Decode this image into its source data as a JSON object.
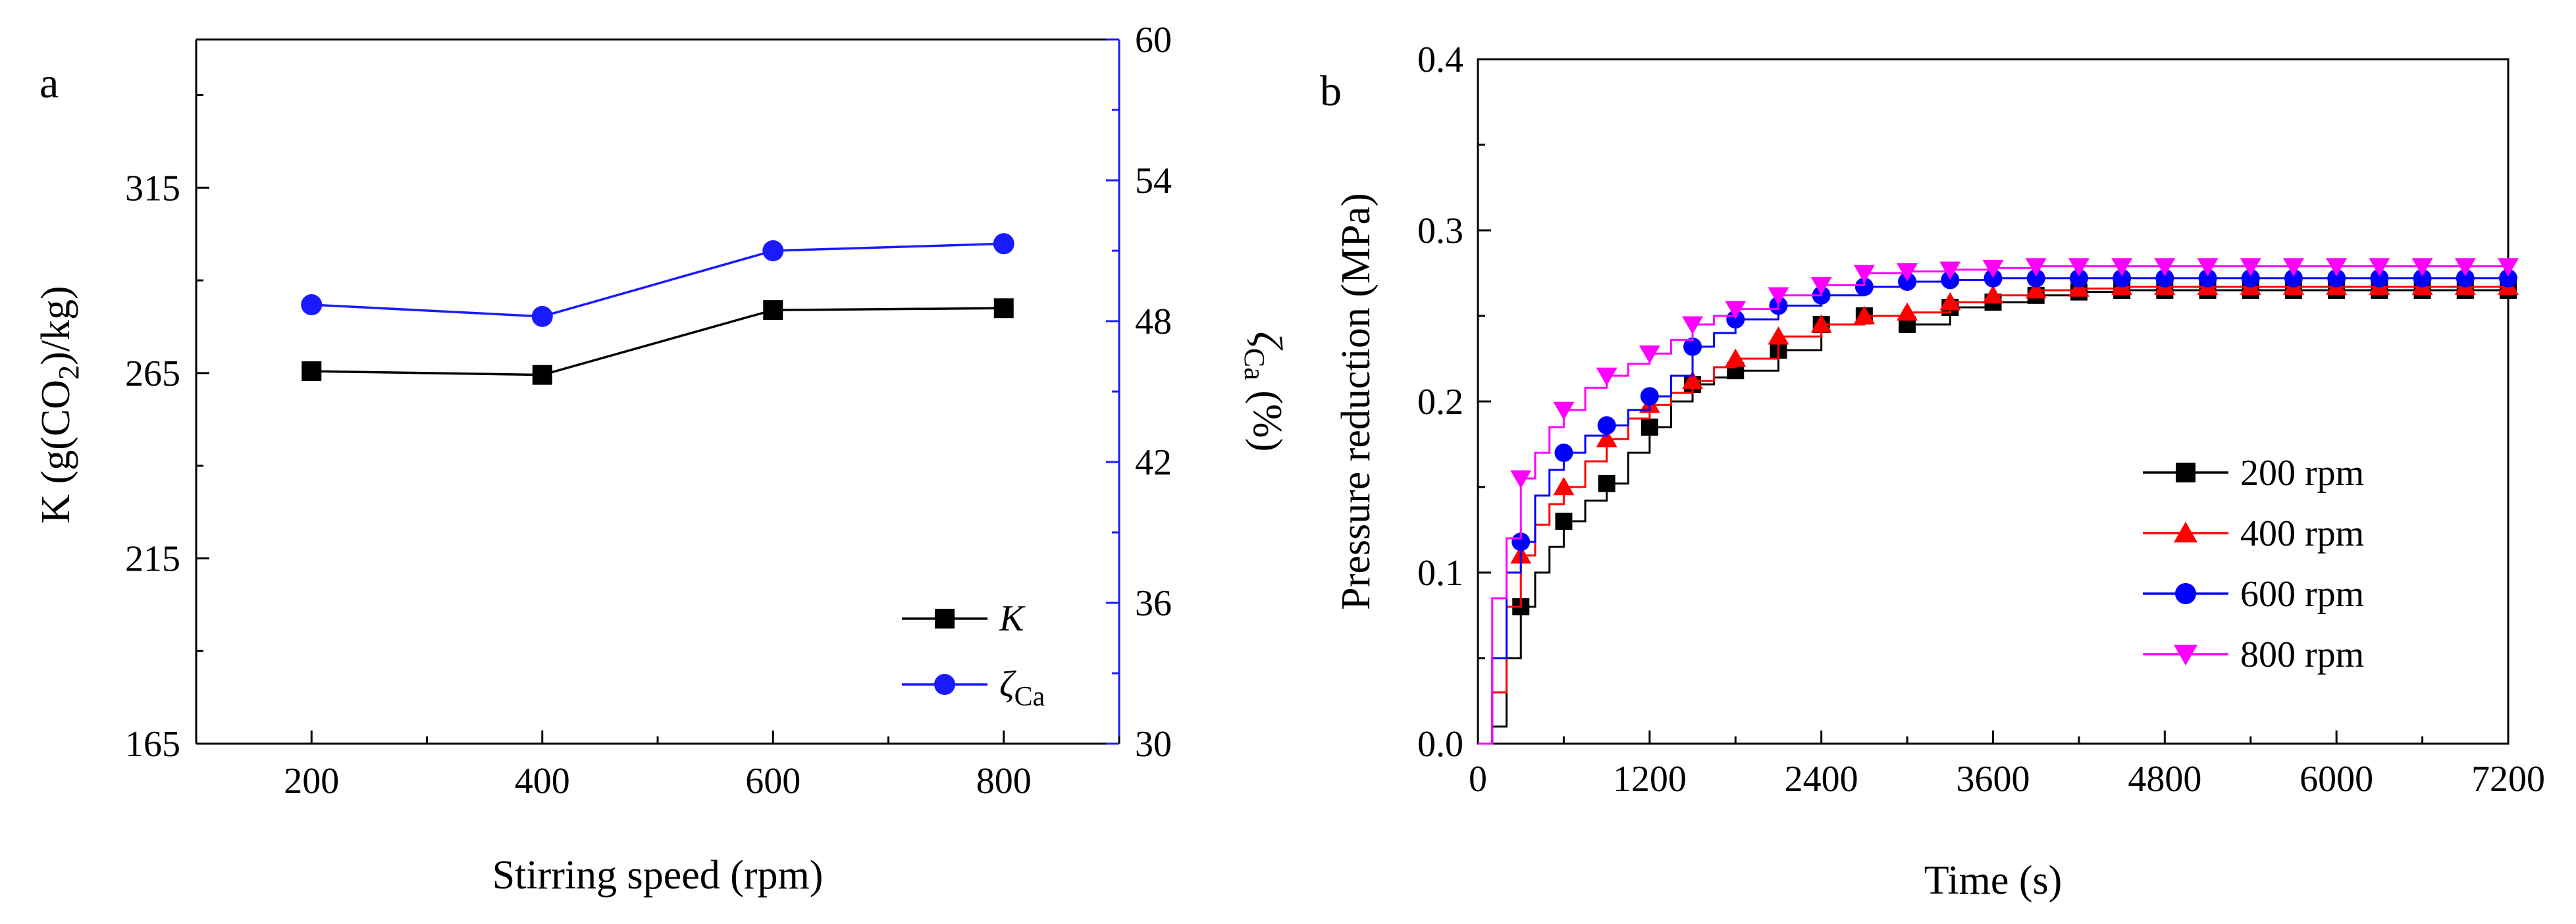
{
  "chart_data": [
    {
      "panel_label": "a",
      "type": "line",
      "xlabel": "Stirring speed (rpm)",
      "categories": [
        200,
        400,
        600,
        800
      ],
      "xticks": [
        "200",
        "400",
        "600",
        "800"
      ],
      "xlim": [
        100,
        900
      ],
      "ylabel_left": {
        "main": "K (g(CO",
        "sub": "2",
        "tail": ")/kg)"
      },
      "ylim_left": [
        165,
        355
      ],
      "yticks_left": [
        165,
        215,
        265,
        315
      ],
      "ylabel_right": {
        "symbol": "ζ",
        "sub": "Ca",
        "tail": " (%)"
      },
      "ylim_right": [
        30,
        60
      ],
      "yticks_right": [
        30,
        36,
        42,
        48,
        54,
        60
      ],
      "right_axis_color": "#1a1aff",
      "legend_position": "bottom-right",
      "series": [
        {
          "name": "K",
          "axis": "left",
          "color": "#000000",
          "marker": "square",
          "values": [
            265.5,
            264.5,
            282.0,
            282.5
          ]
        },
        {
          "name": "ζ",
          "name_sub": "Ca",
          "axis": "right",
          "color": "#1a1aff",
          "marker": "circle",
          "values": [
            48.7,
            48.2,
            51.0,
            51.3
          ]
        }
      ]
    },
    {
      "panel_label": "b",
      "type": "line",
      "xlabel": "Time (s)",
      "ylabel": "Pressure reduction (MPa)",
      "xlim": [
        0,
        7200
      ],
      "ylim": [
        0,
        0.4
      ],
      "xticks": [
        0,
        1200,
        2400,
        3600,
        4800,
        6000,
        7200
      ],
      "yticks": [
        "0.0",
        "0.1",
        "0.2",
        "0.3",
        "0.4"
      ],
      "legend_position": "center-right",
      "series": [
        {
          "name": "200 rpm",
          "color": "#000000",
          "marker": "square",
          "x": [
            0,
            100,
            200,
            300,
            400,
            500,
            600,
            750,
            900,
            1050,
            1200,
            1350,
            1500,
            1650,
            1800,
            2100,
            2400,
            2700,
            3000,
            3300,
            3600,
            3900,
            4200,
            4500,
            4800,
            5100,
            5400,
            5700,
            6000,
            6300,
            6600,
            6900,
            7200
          ],
          "y": [
            0.0,
            0.01,
            0.05,
            0.08,
            0.1,
            0.115,
            0.13,
            0.142,
            0.152,
            0.17,
            0.185,
            0.2,
            0.21,
            0.214,
            0.218,
            0.23,
            0.245,
            0.25,
            0.245,
            0.255,
            0.258,
            0.262,
            0.264,
            0.265,
            0.265,
            0.265,
            0.265,
            0.265,
            0.265,
            0.265,
            0.265,
            0.265,
            0.265
          ]
        },
        {
          "name": "400 rpm",
          "color": "#ff0000",
          "marker": "triangle-up",
          "x": [
            0,
            100,
            200,
            300,
            400,
            500,
            600,
            750,
            900,
            1050,
            1200,
            1350,
            1500,
            1650,
            1800,
            2100,
            2400,
            2700,
            3000,
            3300,
            3600,
            3900,
            4200,
            4500,
            4800,
            5100,
            5400,
            5700,
            6000,
            6300,
            6600,
            6900,
            7200
          ],
          "y": [
            0.0,
            0.03,
            0.08,
            0.11,
            0.128,
            0.14,
            0.15,
            0.165,
            0.178,
            0.19,
            0.198,
            0.205,
            0.212,
            0.22,
            0.225,
            0.238,
            0.245,
            0.25,
            0.252,
            0.258,
            0.262,
            0.265,
            0.266,
            0.267,
            0.267,
            0.267,
            0.267,
            0.267,
            0.267,
            0.267,
            0.267,
            0.267,
            0.267
          ]
        },
        {
          "name": "600 rpm",
          "color": "#0000ff",
          "marker": "circle",
          "x": [
            0,
            100,
            200,
            300,
            400,
            500,
            600,
            750,
            900,
            1050,
            1200,
            1350,
            1500,
            1650,
            1800,
            2100,
            2400,
            2700,
            3000,
            3300,
            3600,
            3900,
            4200,
            4500,
            4800,
            5100,
            5400,
            5700,
            6000,
            6300,
            6600,
            6900,
            7200
          ],
          "y": [
            0.0,
            0.05,
            0.1,
            0.118,
            0.145,
            0.16,
            0.17,
            0.18,
            0.186,
            0.195,
            0.203,
            0.215,
            0.232,
            0.24,
            0.248,
            0.256,
            0.262,
            0.267,
            0.27,
            0.271,
            0.272,
            0.272,
            0.272,
            0.272,
            0.272,
            0.272,
            0.272,
            0.272,
            0.272,
            0.272,
            0.272,
            0.272,
            0.272
          ]
        },
        {
          "name": "800 rpm",
          "color": "#ff00ff",
          "marker": "triangle-down",
          "x": [
            0,
            100,
            200,
            300,
            400,
            500,
            600,
            750,
            900,
            1050,
            1200,
            1350,
            1500,
            1650,
            1800,
            2100,
            2400,
            2700,
            3000,
            3300,
            3600,
            3900,
            4200,
            4500,
            4800,
            5100,
            5400,
            5700,
            6000,
            6300,
            6600,
            6900,
            7200
          ],
          "y": [
            0.0,
            0.085,
            0.12,
            0.155,
            0.17,
            0.185,
            0.195,
            0.208,
            0.215,
            0.222,
            0.228,
            0.236,
            0.245,
            0.25,
            0.254,
            0.262,
            0.268,
            0.275,
            0.276,
            0.277,
            0.278,
            0.279,
            0.279,
            0.279,
            0.279,
            0.279,
            0.279,
            0.279,
            0.279,
            0.279,
            0.279,
            0.279,
            0.279
          ]
        }
      ]
    }
  ]
}
